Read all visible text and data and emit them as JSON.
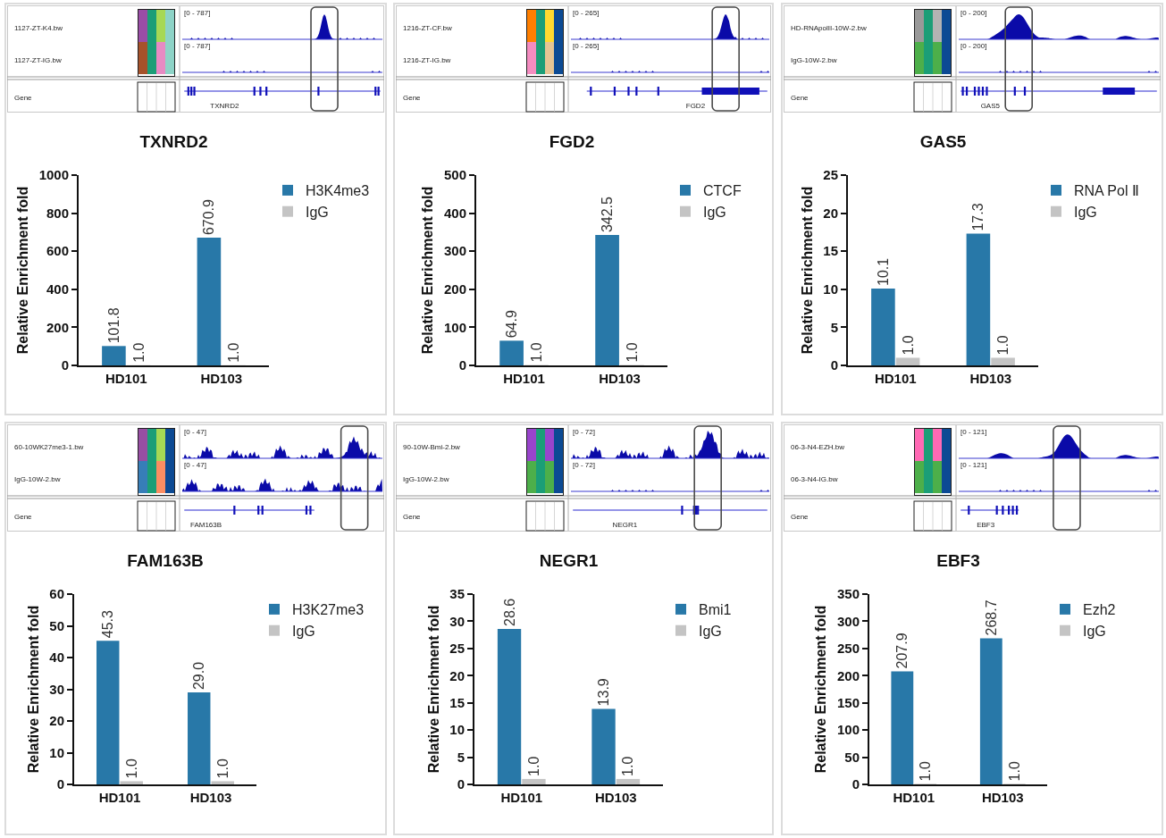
{
  "chart_data": [
    {
      "type": "other",
      "annotations": [
        "1127-ZT-K4.bw",
        "[0 - 787]",
        "1127-ZT-IG.bw",
        "[0 - 787]",
        "Gene",
        "TXNRD2"
      ]
    },
    {
      "type": "bar",
      "title": "TXNRD2",
      "ylabel": "Relative Enrichment fold",
      "categories": [
        "HD101",
        "HD103"
      ],
      "series": [
        {
          "name": "H3K4me3",
          "color": "#2878a8",
          "values": [
            101.8,
            670.9
          ],
          "value_labels": [
            "101.8",
            "670.9"
          ]
        },
        {
          "name": "IgG",
          "color": "#c4c4c4",
          "values": [
            1.0,
            1.0
          ],
          "value_labels": [
            "1.0",
            "1.0"
          ]
        }
      ],
      "ylim": [
        0,
        1000
      ],
      "yticks": [
        0,
        200,
        400,
        600,
        800,
        1000
      ],
      "grid": false,
      "legend": "top right"
    },
    {
      "type": "other",
      "annotations": [
        "1216-ZT-CF.bw",
        "[0 - 265]",
        "1216-ZT-IG.bw",
        "[0 - 265]",
        "Gene",
        "FGD2"
      ]
    },
    {
      "type": "bar",
      "title": "FGD2",
      "ylabel": "Relative Enrichment fold",
      "categories": [
        "HD101",
        "HD103"
      ],
      "series": [
        {
          "name": "CTCF",
          "color": "#2878a8",
          "values": [
            64.9,
            342.5
          ],
          "value_labels": [
            "64.9",
            "342.5"
          ]
        },
        {
          "name": "IgG",
          "color": "#c4c4c4",
          "values": [
            1.0,
            1.0
          ],
          "value_labels": [
            "1.0",
            "1.0"
          ]
        }
      ],
      "ylim": [
        0,
        500
      ],
      "yticks": [
        0,
        100,
        200,
        300,
        400,
        500
      ],
      "grid": false,
      "legend": "top right"
    },
    {
      "type": "other",
      "annotations": [
        "HD-RNApolII-10W-2.bw",
        "[0 - 200]",
        "IgG-10W-2.bw",
        "[0 - 200]",
        "Gene",
        "GAS5"
      ]
    },
    {
      "type": "bar",
      "title": "GAS5",
      "ylabel": "Relative Enrichment fold",
      "categories": [
        "HD101",
        "HD103"
      ],
      "series": [
        {
          "name": "RNA Pol Ⅱ",
          "color": "#2878a8",
          "values": [
            10.1,
            17.3
          ],
          "value_labels": [
            "10.1",
            "17.3"
          ]
        },
        {
          "name": "IgG",
          "color": "#c4c4c4",
          "values": [
            1.0,
            1.0
          ],
          "value_labels": [
            "1.0",
            "1.0"
          ]
        }
      ],
      "ylim": [
        0,
        25
      ],
      "yticks": [
        0,
        5,
        10,
        15,
        20,
        25
      ],
      "grid": false,
      "legend": "top right"
    },
    {
      "type": "other",
      "annotations": [
        "60-10WK27me3-1.bw",
        "[0 - 47]",
        "IgG-10W-2.bw",
        "[0 - 47]",
        "Gene",
        "FAM163B"
      ]
    },
    {
      "type": "bar",
      "title": "FAM163B",
      "ylabel": "Relative Enrichment fold",
      "categories": [
        "HD101",
        "HD103"
      ],
      "series": [
        {
          "name": "H3K27me3",
          "color": "#2878a8",
          "values": [
            45.3,
            29.0
          ],
          "value_labels": [
            "45.3",
            "29.0"
          ]
        },
        {
          "name": "IgG",
          "color": "#c4c4c4",
          "values": [
            1.0,
            1.0
          ],
          "value_labels": [
            "1.0",
            "1.0"
          ]
        }
      ],
      "ylim": [
        0,
        60
      ],
      "yticks": [
        0,
        10,
        20,
        30,
        40,
        50,
        60
      ],
      "grid": false,
      "legend": "top right"
    },
    {
      "type": "other",
      "annotations": [
        "90-10W-Bmi-2.bw",
        "[0 - 72]",
        "IgG-10W-2.bw",
        "[0 - 72]",
        "Gene",
        "NEGR1"
      ]
    },
    {
      "type": "bar",
      "title": "NEGR1",
      "ylabel": "Relative Enrichment fold",
      "categories": [
        "HD101",
        "HD103"
      ],
      "series": [
        {
          "name": "Bmi1",
          "color": "#2878a8",
          "values": [
            28.6,
            13.9
          ],
          "value_labels": [
            "28.6",
            "13.9"
          ]
        },
        {
          "name": "IgG",
          "color": "#c4c4c4",
          "values": [
            1.0,
            1.0
          ],
          "value_labels": [
            "1.0",
            "1.0"
          ]
        }
      ],
      "ylim": [
        0,
        35
      ],
      "yticks": [
        0,
        5,
        10,
        15,
        20,
        25,
        30,
        35
      ],
      "grid": false,
      "legend": "top right"
    },
    {
      "type": "other",
      "annotations": [
        "06-3-N4-EZH.bw",
        "[0 - 121]",
        "06-3-N4-IG.bw",
        "[0 - 121]",
        "Gene",
        "EBF3"
      ]
    },
    {
      "type": "bar",
      "title": "EBF3",
      "ylabel": "Relative Enrichment fold",
      "categories": [
        "HD101",
        "HD103"
      ],
      "series": [
        {
          "name": "Ezh2",
          "color": "#2878a8",
          "values": [
            207.9,
            268.7
          ],
          "value_labels": [
            "207.9",
            "268.7"
          ]
        },
        {
          "name": "IgG",
          "color": "#c4c4c4",
          "values": [
            1.0,
            1.0
          ],
          "value_labels": [
            "1.0",
            "1.0"
          ]
        }
      ],
      "ylim": [
        0,
        350
      ],
      "yticks": [
        0,
        50,
        100,
        150,
        200,
        250,
        300,
        350
      ],
      "grid": false,
      "legend": "top right"
    }
  ]
}
